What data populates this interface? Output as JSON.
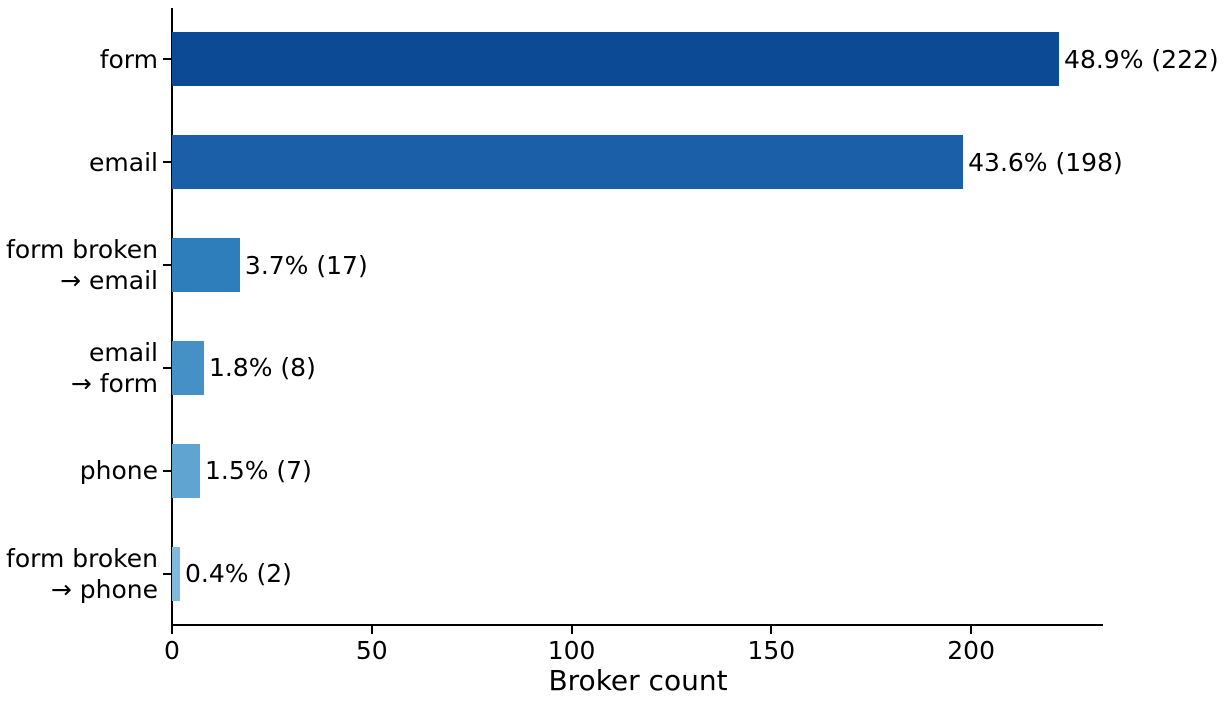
{
  "chart_data": {
    "type": "bar",
    "orientation": "horizontal",
    "title": "",
    "xlabel": "Broker count",
    "ylabel": "",
    "categories": [
      "form",
      "email",
      "form broken\n→ email",
      "email\n→ form",
      "phone",
      "form broken\n→ phone"
    ],
    "values": [
      222,
      198,
      17,
      8,
      7,
      2
    ],
    "percentages": [
      48.9,
      43.6,
      3.7,
      1.8,
      1.5,
      0.4
    ],
    "bar_labels": [
      "48.9% (222)",
      "43.6% (198)",
      "3.7% (17)",
      "1.8% (8)",
      "1.5% (7)",
      "0.4% (2)"
    ],
    "bar_colors": [
      "#0d4a96",
      "#1a5fa8",
      "#2e7ebc",
      "#4590c7",
      "#5ea5d2",
      "#7fb9dd"
    ],
    "xlim": [
      0,
      233
    ],
    "x_ticks": [
      0,
      50,
      100,
      150,
      200
    ],
    "grid": false,
    "legend": null,
    "axis_color": "#000000",
    "text_color": "#000000",
    "background_color": "#ffffff"
  }
}
